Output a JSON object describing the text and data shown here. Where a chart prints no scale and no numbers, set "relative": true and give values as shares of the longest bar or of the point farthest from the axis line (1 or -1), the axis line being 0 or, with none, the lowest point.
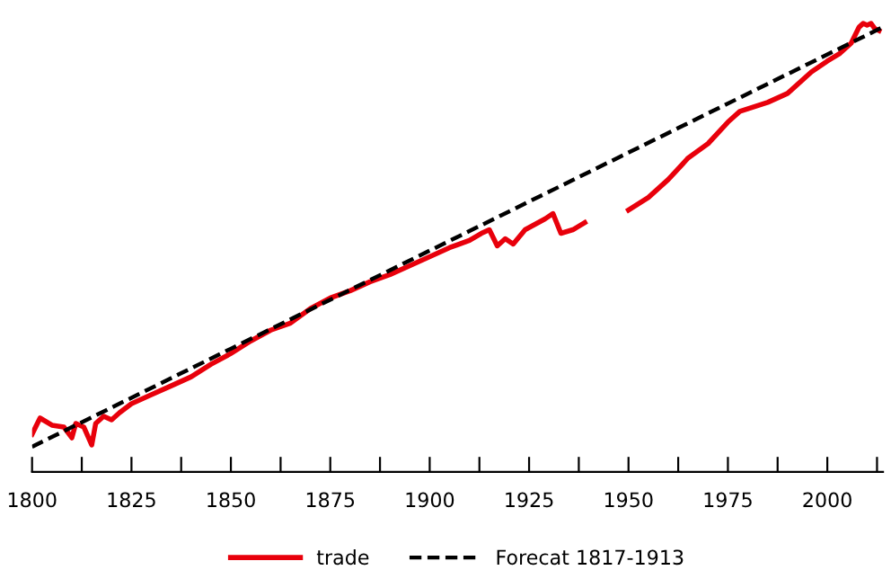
{
  "chart_data": {
    "type": "line",
    "relative": true,
    "legend": "bottom",
    "grid": false,
    "xlim": [
      1800,
      2014
    ],
    "xticks": [
      1800,
      {
        "value": 1812.5,
        "label": null
      },
      1825,
      {
        "value": 1837.5,
        "label": null
      },
      1850,
      {
        "value": 1862.5,
        "label": null
      },
      1875,
      {
        "value": 1887.5,
        "label": null
      },
      1900,
      {
        "value": 1912.5,
        "label": null
      },
      1925,
      {
        "value": 1937.5,
        "label": null
      },
      1950,
      {
        "value": 1962.5,
        "label": null
      },
      1975,
      {
        "value": 1987.5,
        "label": null
      },
      2000,
      {
        "value": 2012.5,
        "label": null
      }
    ],
    "series": [
      {
        "name": "trade",
        "color": "#e8000b",
        "line_style": "solid",
        "x": [
          1800,
          1802,
          1805,
          1808,
          1810,
          1811,
          1813,
          1815,
          1816,
          1818,
          1820,
          1822,
          1825,
          1830,
          1835,
          1840,
          1845,
          1850,
          1855,
          1860,
          1865,
          1870,
          1875,
          1880,
          1885,
          1890,
          1895,
          1900,
          1905,
          1910,
          1913,
          1915,
          1917,
          1919,
          1921,
          1924,
          1929,
          1931,
          1933,
          1936,
          1939,
          1945,
          1950,
          1955,
          1960,
          1965,
          1970,
          1975,
          1978,
          1985,
          1990,
          1996,
          2000,
          2003,
          2006,
          2008,
          2009,
          2010,
          2011,
          2012,
          2013
        ],
        "values": [
          0.084,
          0.12,
          0.104,
          0.1,
          0.076,
          0.108,
          0.1,
          0.06,
          0.108,
          0.124,
          0.116,
          0.132,
          0.152,
          0.172,
          0.192,
          0.212,
          0.24,
          0.264,
          0.292,
          0.316,
          0.332,
          0.364,
          0.388,
          0.404,
          0.424,
          0.44,
          0.46,
          0.48,
          0.5,
          0.516,
          0.532,
          0.54,
          0.504,
          0.52,
          0.508,
          0.54,
          0.564,
          0.576,
          0.532,
          0.54,
          0.556,
          null,
          0.584,
          0.612,
          0.652,
          0.7,
          0.732,
          0.78,
          0.804,
          0.824,
          0.844,
          0.892,
          0.916,
          0.932,
          0.956,
          0.992,
          1.0,
          0.996,
          1.0,
          0.988,
          0.984
        ]
      },
      {
        "name": "Forecat 1817-1913",
        "color": "#000000",
        "line_style": "dashed",
        "x": [
          1800,
          2014
        ],
        "values": [
          0.056,
          0.992
        ]
      }
    ]
  }
}
